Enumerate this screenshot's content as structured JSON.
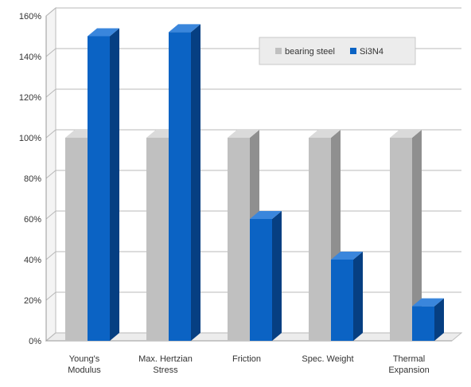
{
  "chart_data": {
    "type": "bar",
    "categories": [
      [
        "Young's",
        "Modulus"
      ],
      [
        "Max. Hertzian",
        "Stress"
      ],
      [
        "Friction"
      ],
      [
        "Spec. Weight"
      ],
      [
        "Thermal",
        "Expansion"
      ]
    ],
    "series": [
      {
        "name": "bearing steel",
        "values": [
          100,
          100,
          100,
          100,
          100
        ]
      },
      {
        "name": "Si3N4",
        "values": [
          150,
          152,
          60,
          40,
          17
        ]
      }
    ],
    "ylim": [
      0,
      160
    ],
    "yticks": [
      "0%",
      "20%",
      "40%",
      "60%",
      "80%",
      "100%",
      "120%",
      "140%",
      "160%"
    ],
    "grid": true,
    "legend_position": "top-right",
    "colors": {
      "bearing steel": {
        "front": "#c0c0c0",
        "side": "#8f8f8f",
        "top": "#dadada"
      },
      "Si3N4": {
        "front": "#0b63c4",
        "side": "#063f82",
        "top": "#3a86dc"
      }
    }
  }
}
